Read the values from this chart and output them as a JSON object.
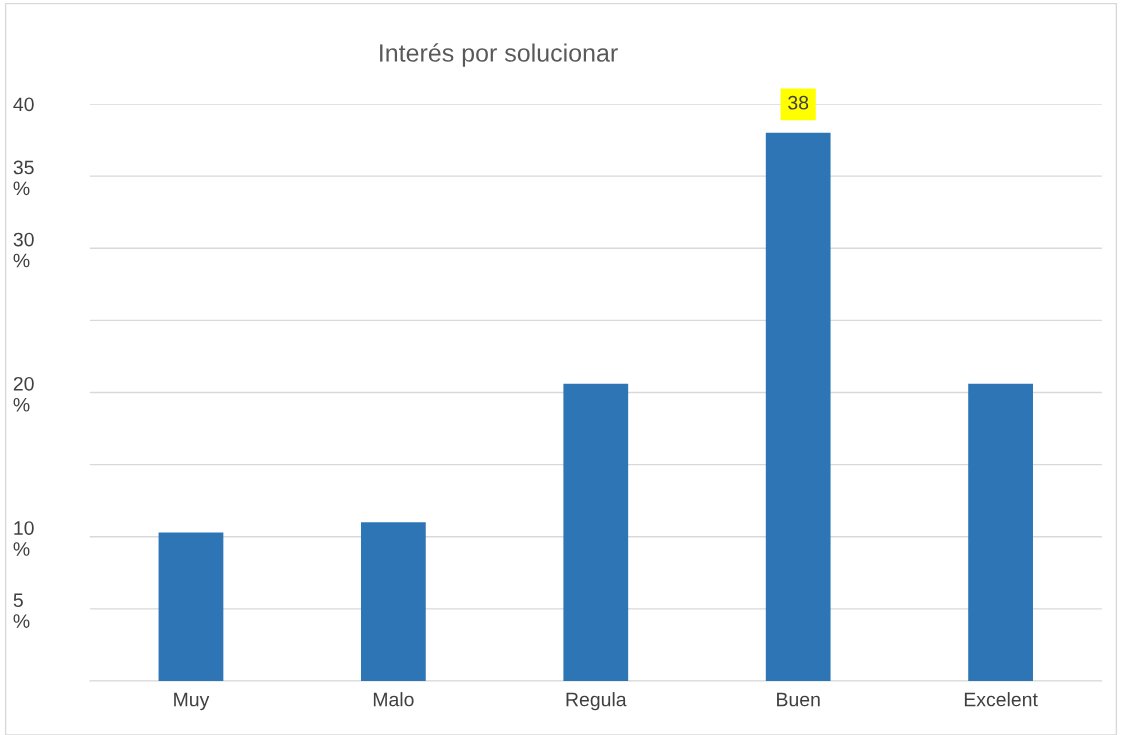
{
  "chart_data": {
    "type": "bar",
    "title": "Interés por solucionar",
    "categories": [
      "Muy",
      "Malo",
      "Regula",
      "Buen",
      "Excelent"
    ],
    "values": [
      10.3,
      11.0,
      20.6,
      38,
      20.6
    ],
    "value_labels": [
      null,
      null,
      null,
      "38",
      null
    ],
    "color": "#2e75b6",
    "ylim": [
      0,
      40
    ],
    "yticks": [
      {
        "value": 0,
        "label": null
      },
      {
        "value": 5,
        "label": "5\n%"
      },
      {
        "value": 10,
        "label": "10\n%"
      },
      {
        "value": 15,
        "label": null
      },
      {
        "value": 20,
        "label": "20\n%"
      },
      {
        "value": 25,
        "label": null
      },
      {
        "value": 30,
        "label": "30\n%"
      },
      {
        "value": 35,
        "label": "35\n%"
      },
      40
    ],
    "grid": "y",
    "legend": false
  }
}
